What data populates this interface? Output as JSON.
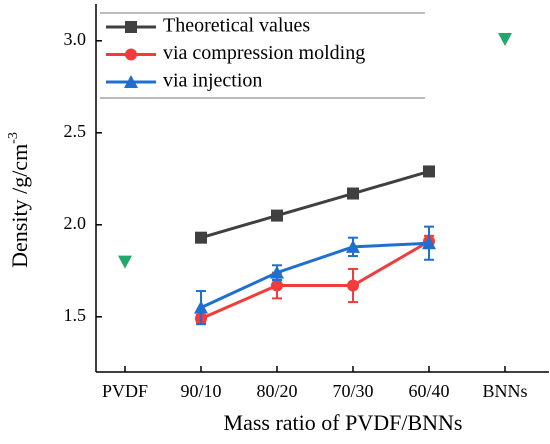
{
  "chart_data": {
    "type": "line",
    "ylabel": "Density /g/cm",
    "ylabel_sup": "-3",
    "xlabel": "Mass ratio of PVDF/BNNs",
    "categories": [
      "PVDF",
      "90/10",
      "80/20",
      "70/30",
      "60/40",
      "BNNs"
    ],
    "ylim": [
      1.2,
      3.2
    ],
    "yticks": [
      1.5,
      {
        "value": 2.0,
        "label": "2.0"
      },
      2.5,
      {
        "value": 3.0,
        "label": "3.0"
      }
    ],
    "legend": "upper left",
    "series": [
      {
        "name": "Theoretical values",
        "color": "#404040",
        "marker": "square",
        "values": [
          null,
          1.93,
          2.05,
          2.17,
          2.29,
          null
        ],
        "errors": [
          null,
          0.01,
          0.01,
          0.01,
          0.02,
          null
        ]
      },
      {
        "name": "via compression molding",
        "color": "#f03c3c",
        "marker": "circle",
        "values": [
          null,
          1.49,
          1.67,
          1.67,
          1.91,
          null
        ],
        "errors": [
          null,
          0.02,
          0.07,
          0.09,
          0.03,
          null
        ]
      },
      {
        "name": "via injection",
        "color": "#1f6fd0",
        "marker": "triangle",
        "values": [
          null,
          1.55,
          1.74,
          1.88,
          1.9,
          null
        ],
        "errors": [
          null,
          0.09,
          0.04,
          0.05,
          0.09,
          null
        ]
      },
      {
        "color": "#22a86a",
        "marker": "triangle-down",
        "line": false,
        "values": [
          1.8,
          null,
          null,
          null,
          null,
          3.01
        ]
      }
    ]
  }
}
